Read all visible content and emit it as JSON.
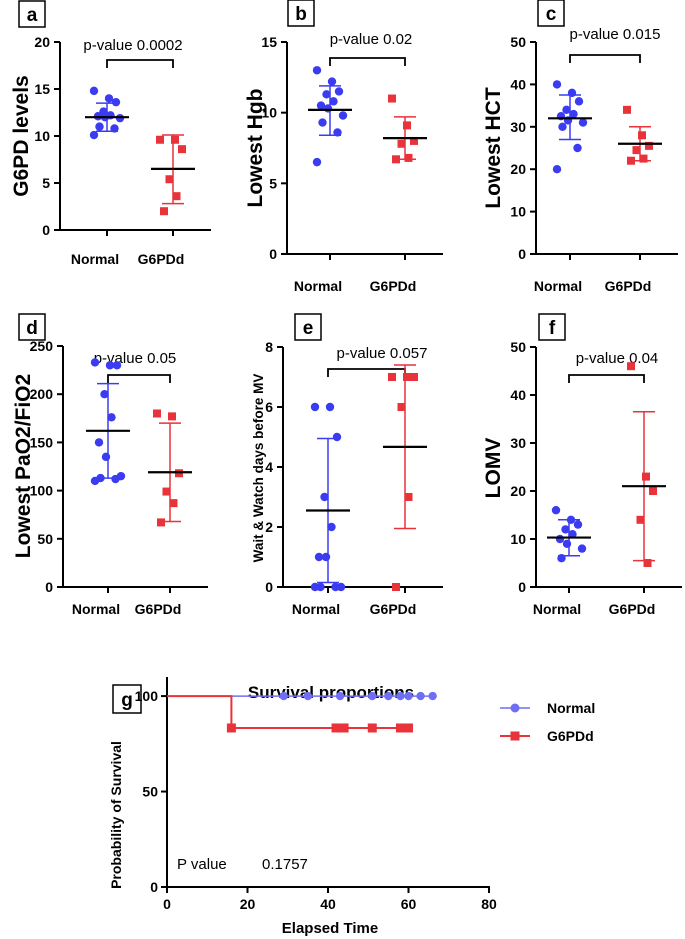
{
  "colors": {
    "normal": "#3b3bf2",
    "g6pdd": "#e8333b",
    "normal_line": "#6f6ff5",
    "black": "#000000"
  },
  "chart_data": [
    {
      "id": "a",
      "type": "scatter",
      "panel_label": "a",
      "ylabel": "G6PD levels",
      "ylim": [
        0,
        20
      ],
      "yticks": [
        0,
        5,
        10,
        15,
        20
      ],
      "categories": [
        "Normal",
        "G6PDd"
      ],
      "pvalue_text": "p-value 0.0002",
      "series": [
        {
          "name": "Normal",
          "values": [
            14.8,
            14.0,
            13.6,
            12.6,
            12.2,
            12.1,
            12.0,
            11.9,
            11.0,
            10.8,
            10.1
          ],
          "mean": 12.0,
          "sd": [
            10.5,
            13.5
          ]
        },
        {
          "name": "G6PDd",
          "values": [
            9.6,
            9.6,
            8.6,
            5.4,
            3.6,
            2.0
          ],
          "mean": 6.5,
          "sd": [
            2.8,
            10.1
          ]
        }
      ]
    },
    {
      "id": "b",
      "type": "scatter",
      "panel_label": "b",
      "ylabel": "Lowest Hgb",
      "ylim": [
        0,
        15
      ],
      "yticks": [
        0,
        5,
        10,
        15
      ],
      "categories": [
        "Normal",
        "G6PDd"
      ],
      "pvalue_text": "p-value 0.02",
      "series": [
        {
          "name": "Normal",
          "values": [
            13.0,
            12.2,
            11.5,
            11.3,
            10.8,
            10.5,
            10.3,
            9.8,
            9.3,
            8.6,
            6.5
          ],
          "mean": 10.2,
          "sd": [
            8.4,
            11.9
          ]
        },
        {
          "name": "G6PDd",
          "values": [
            11.0,
            9.1,
            8.0,
            7.8,
            6.8,
            6.7
          ],
          "mean": 8.2,
          "sd": [
            6.7,
            9.7
          ]
        }
      ]
    },
    {
      "id": "c",
      "type": "scatter",
      "panel_label": "c",
      "ylabel": "Lowest HCT",
      "ylim": [
        0,
        50
      ],
      "yticks": [
        0,
        10,
        20,
        30,
        40,
        50
      ],
      "categories": [
        "Normal",
        "G6PDd"
      ],
      "pvalue_text": "p-value 0.015",
      "series": [
        {
          "name": "Normal",
          "values": [
            40.0,
            38.0,
            36.0,
            34.0,
            33.0,
            32.5,
            31.5,
            31.0,
            30.0,
            25.0,
            20.0
          ],
          "mean": 32.0,
          "sd": [
            27.0,
            37.5
          ]
        },
        {
          "name": "G6PDd",
          "values": [
            34.0,
            28.0,
            25.5,
            24.5,
            22.5,
            22.0
          ],
          "mean": 26.0,
          "sd": [
            22.0,
            30.0
          ]
        }
      ]
    },
    {
      "id": "d",
      "type": "scatter",
      "panel_label": "d",
      "ylabel": "Lowest PaO2/FiO2",
      "ylim": [
        0,
        250
      ],
      "yticks": [
        0,
        50,
        100,
        150,
        200,
        250
      ],
      "categories": [
        "Normal",
        "G6PDd"
      ],
      "pvalue_text": "p-value 0.05",
      "series": [
        {
          "name": "Normal",
          "values": [
            233,
            230,
            230,
            200,
            176,
            150,
            135,
            115,
            113,
            112,
            110
          ],
          "mean": 162,
          "sd": [
            113,
            211
          ]
        },
        {
          "name": "G6PDd",
          "values": [
            180,
            177,
            118,
            99,
            87,
            67
          ],
          "mean": 119,
          "sd": [
            68,
            170
          ]
        }
      ]
    },
    {
      "id": "e",
      "type": "scatter",
      "panel_label": "e",
      "ylabel": "Wait & Watch days before MV",
      "ylim": [
        0,
        8
      ],
      "yticks": [
        0,
        2,
        4,
        6,
        8
      ],
      "categories": [
        "Normal",
        "G6PDd"
      ],
      "pvalue_text": "p-value 0.057",
      "series": [
        {
          "name": "Normal",
          "values": [
            6,
            6,
            5,
            3,
            2,
            1,
            1,
            0,
            0,
            0,
            0
          ],
          "mean": 2.55,
          "sd": [
            0.15,
            4.95
          ]
        },
        {
          "name": "G6PDd",
          "values": [
            7,
            7,
            7,
            6,
            3,
            0
          ],
          "mean": 4.67,
          "sd": [
            1.95,
            7.4
          ]
        }
      ]
    },
    {
      "id": "f",
      "type": "scatter",
      "panel_label": "f",
      "ylabel": "LOMV",
      "ylim": [
        0,
        50
      ],
      "yticks": [
        0,
        10,
        20,
        30,
        40,
        50
      ],
      "categories": [
        "Normal",
        "G6PDd"
      ],
      "pvalue_text": "p-value 0.04",
      "series": [
        {
          "name": "Normal",
          "values": [
            16,
            14,
            13,
            12,
            11,
            10,
            9,
            8,
            6
          ],
          "mean": 10.3,
          "sd": [
            6.5,
            14.0
          ]
        },
        {
          "name": "G6PDd",
          "values": [
            46,
            23,
            20,
            14,
            5
          ],
          "mean": 21.0,
          "sd": [
            5.5,
            36.5
          ]
        }
      ]
    },
    {
      "id": "g",
      "type": "line",
      "panel_label": "g",
      "title": "Survival proportions",
      "xlabel": "Elapsed Time",
      "ylabel": "Probability of Survival",
      "xlim": [
        0,
        80
      ],
      "xticks": [
        0,
        20,
        40,
        60,
        80
      ],
      "ylim": [
        0,
        110
      ],
      "yticks": [
        0,
        50,
        100
      ],
      "pvalue_label": "P value",
      "pvalue_number": "0.1757",
      "series": [
        {
          "name": "Normal",
          "steps": [
            [
              0,
              100
            ],
            [
              66,
              100
            ]
          ],
          "censored": [
            29,
            35,
            43,
            51,
            55,
            58,
            60,
            63,
            66
          ]
        },
        {
          "name": "G6PDd",
          "steps": [
            [
              0,
              100
            ],
            [
              16,
              100
            ],
            [
              16,
              83.3
            ],
            [
              60,
              83.3
            ]
          ],
          "censored": [
            16,
            42,
            44,
            51,
            58,
            60
          ]
        }
      ]
    }
  ]
}
